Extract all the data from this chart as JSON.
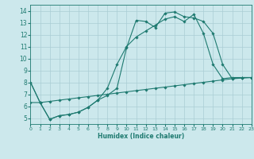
{
  "title": "",
  "xlabel": "Humidex (Indice chaleur)",
  "bg_color": "#cce8ec",
  "grid_color": "#aacdd4",
  "line_color": "#1e7a70",
  "xlim": [
    0,
    23
  ],
  "ylim": [
    4.5,
    14.5
  ],
  "xticks": [
    0,
    1,
    2,
    3,
    4,
    5,
    6,
    7,
    8,
    9,
    10,
    11,
    12,
    13,
    14,
    15,
    16,
    17,
    18,
    19,
    20,
    21,
    22,
    23
  ],
  "yticks": [
    5,
    6,
    7,
    8,
    9,
    10,
    11,
    12,
    13,
    14
  ],
  "line1_x": [
    0,
    1,
    2,
    3,
    4,
    5,
    6,
    7,
    8,
    9,
    10,
    11,
    12,
    13,
    14,
    15,
    16,
    17,
    18,
    19,
    20,
    21,
    22,
    23
  ],
  "line1_y": [
    8.0,
    6.3,
    4.9,
    5.2,
    5.3,
    5.5,
    5.9,
    6.5,
    6.9,
    7.5,
    10.9,
    13.2,
    13.1,
    12.6,
    13.8,
    13.9,
    13.5,
    13.4,
    13.1,
    12.1,
    9.5,
    8.3,
    8.4,
    8.4
  ],
  "line2_x": [
    0,
    1,
    2,
    3,
    4,
    5,
    6,
    7,
    8,
    9,
    10,
    11,
    12,
    13,
    14,
    15,
    16,
    17,
    18,
    19,
    20,
    21,
    22,
    23
  ],
  "line2_y": [
    8.0,
    6.3,
    4.9,
    5.2,
    5.3,
    5.5,
    5.9,
    6.5,
    7.5,
    9.5,
    11.0,
    11.8,
    12.3,
    12.8,
    13.3,
    13.5,
    13.1,
    13.7,
    12.1,
    9.5,
    8.3,
    8.4,
    8.4,
    8.4
  ],
  "line3_x": [
    0,
    1,
    2,
    3,
    4,
    5,
    6,
    7,
    8,
    9,
    10,
    11,
    12,
    13,
    14,
    15,
    16,
    17,
    18,
    19,
    20,
    21,
    22,
    23
  ],
  "line3_y": [
    6.3,
    6.3,
    6.4,
    6.5,
    6.6,
    6.7,
    6.8,
    6.9,
    7.0,
    7.1,
    7.2,
    7.3,
    7.4,
    7.5,
    7.6,
    7.7,
    7.8,
    7.9,
    8.0,
    8.1,
    8.2,
    8.3,
    8.35,
    8.4
  ]
}
